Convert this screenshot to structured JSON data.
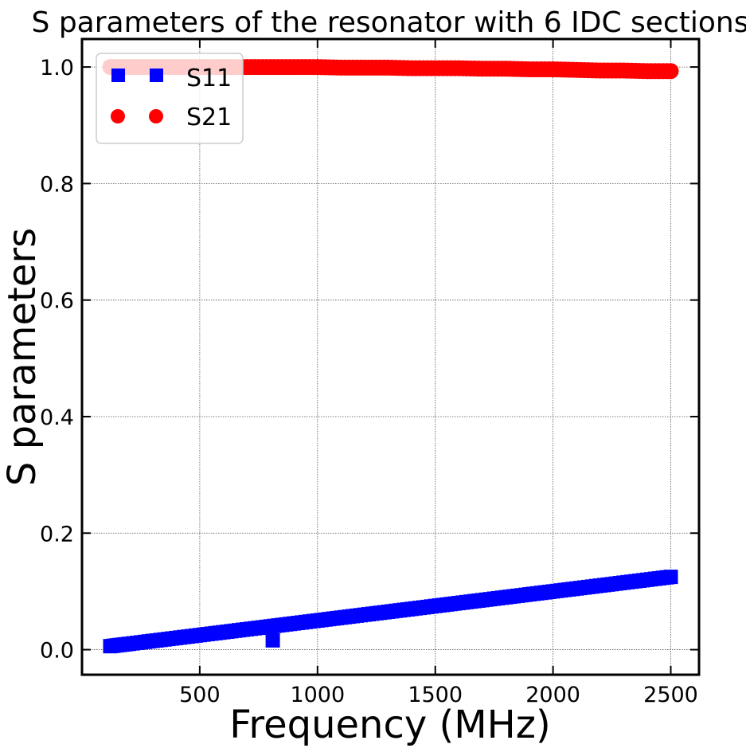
{
  "chart_data": {
    "type": "scatter",
    "title": "S parameters of the resonator with 6 IDC sections",
    "xlabel": "Frequency (MHz)",
    "ylabel": "S parameters",
    "xlim": [
      0,
      2620
    ],
    "ylim": [
      -0.043,
      1.048
    ],
    "xticks": [
      500,
      1000,
      1500,
      2000,
      2500
    ],
    "xtick_labels": [
      "500",
      "1000",
      "1500",
      "2000",
      "2500"
    ],
    "yticks": [
      0.0,
      0.2,
      0.4,
      0.6,
      0.8,
      1.0
    ],
    "ytick_labels": [
      "0.0",
      "0.2",
      "0.4",
      "0.6",
      "0.8",
      "1.0"
    ],
    "grid": true,
    "legend_position": "top-left",
    "series": [
      {
        "name": "S11",
        "marker": "square",
        "color": "#0000ff",
        "x": [
          120,
          200,
          300,
          400,
          500,
          600,
          700,
          800,
          810,
          900,
          1000,
          1100,
          1200,
          1300,
          1400,
          1500,
          1600,
          1700,
          1800,
          1900,
          2000,
          2100,
          2200,
          2300,
          2400,
          2500
        ],
        "y": [
          0.006,
          0.01,
          0.015,
          0.02,
          0.025,
          0.03,
          0.035,
          0.04,
          0.016,
          0.045,
          0.05,
          0.055,
          0.06,
          0.065,
          0.07,
          0.075,
          0.08,
          0.085,
          0.09,
          0.095,
          0.1,
          0.105,
          0.11,
          0.115,
          0.12,
          0.125
        ]
      },
      {
        "name": "S21",
        "marker": "circle",
        "color": "#ff0000",
        "x": [
          120,
          200,
          300,
          400,
          500,
          600,
          700,
          800,
          900,
          1000,
          1100,
          1200,
          1300,
          1400,
          1500,
          1600,
          1700,
          1800,
          1900,
          2000,
          2100,
          2200,
          2300,
          2400,
          2500
        ],
        "y": [
          1.0,
          1.0,
          1.0,
          1.0,
          1.0,
          1.0,
          1.0,
          1.0,
          1.0,
          1.0,
          0.999,
          0.999,
          0.999,
          0.998,
          0.998,
          0.998,
          0.997,
          0.997,
          0.996,
          0.996,
          0.995,
          0.994,
          0.994,
          0.993,
          0.993
        ]
      }
    ]
  }
}
